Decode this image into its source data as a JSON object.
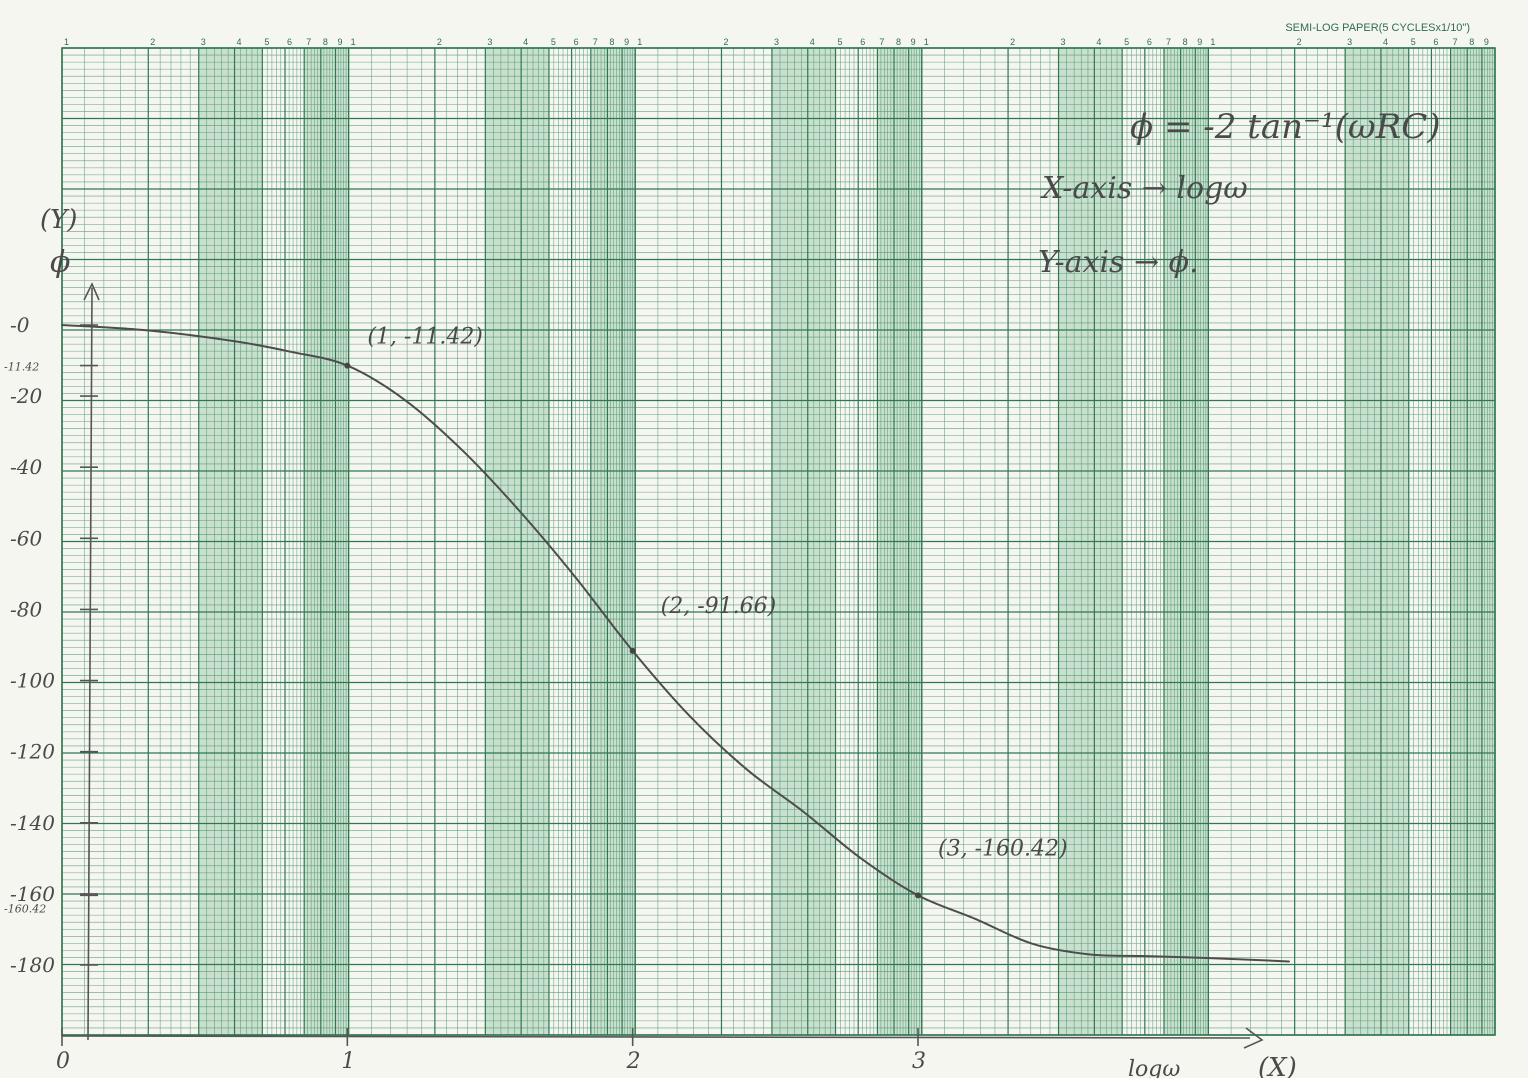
{
  "paper": {
    "header": "SEMI-LOG PAPER(5 CYCLESx1/10\")",
    "cycle_tick_labels": [
      "1",
      "2",
      "3",
      "4",
      "5",
      "6",
      "7",
      "8",
      "9"
    ],
    "grid_color": "#3f8a63",
    "band_color": "#b9d8c3",
    "paper_color": "#f6f6f1"
  },
  "annotations": {
    "formula": "ϕ = -2 tan⁻¹(ωRC)",
    "x_axis_note": "X-axis → logω",
    "y_axis_note": "Y-axis → ϕ."
  },
  "chart_data": {
    "type": "line",
    "title": "",
    "xlabel": "logω",
    "xlabel_tag": "(X)",
    "ylabel": "ϕ",
    "ylabel_tag": "(Y)",
    "xlim": [
      0,
      4.5
    ],
    "ylim": [
      -195,
      10
    ],
    "x_ticks": [
      0,
      1,
      2,
      3
    ],
    "x_tick_labels": [
      "0",
      "1",
      "2",
      "3"
    ],
    "y_ticks": [
      0,
      -11.42,
      -20,
      -40,
      -60,
      -80,
      -100,
      -120,
      -140,
      -160,
      -160.42,
      -180
    ],
    "y_tick_labels": [
      "-0",
      "-11.42",
      "-20",
      "-40",
      "-60",
      "-80",
      "-100",
      "-120",
      "-140",
      "-160",
      "-160.42",
      "-180"
    ],
    "series": [
      {
        "x": [
          0,
          0.3,
          0.6,
          0.8,
          1.0,
          1.2,
          1.4,
          1.6,
          1.8,
          2.0,
          2.2,
          2.4,
          2.6,
          2.8,
          3.0,
          3.2,
          3.4,
          3.6,
          3.8,
          4.0,
          4.3
        ],
        "y": [
          0,
          -1.5,
          -4.5,
          -7.5,
          -11.42,
          -21,
          -35,
          -52,
          -71,
          -91.66,
          -110,
          -125,
          -137,
          -150,
          -160.42,
          -167,
          -174,
          -177,
          -177.5,
          -178,
          -179
        ]
      }
    ],
    "labeled_points": [
      {
        "x": 1,
        "y": -11.42,
        "label": "(1, -11.42)"
      },
      {
        "x": 2,
        "y": -91.66,
        "label": "(2, -91.66)"
      },
      {
        "x": 3,
        "y": -160.42,
        "label": "(3, -160.42)"
      }
    ],
    "grid": true
  }
}
